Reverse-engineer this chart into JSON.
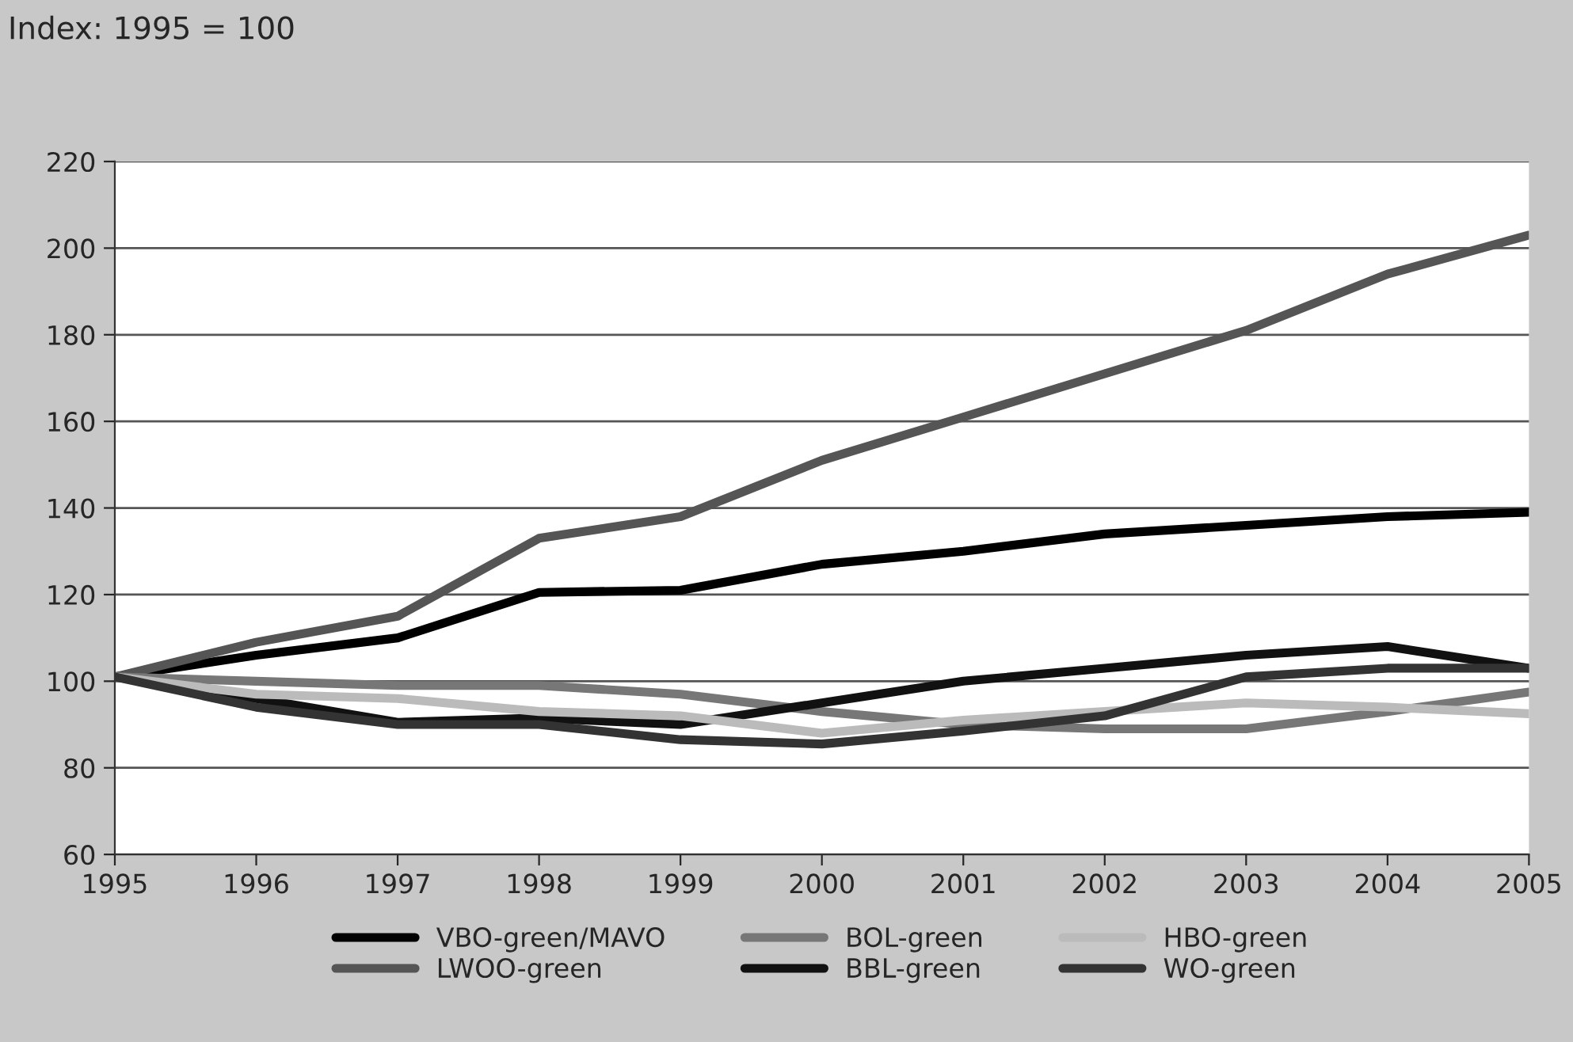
{
  "chart_data": {
    "type": "line",
    "title": "Index: 1995 = 100",
    "x": [
      1995,
      1996,
      1997,
      1998,
      1999,
      2000,
      2001,
      2002,
      2003,
      2004,
      2005
    ],
    "series": [
      {
        "name": "VBO-green/MAVO",
        "color": "#000000",
        "values": [
          101,
          106,
          110,
          120.5,
          121,
          127,
          130,
          134,
          136,
          138,
          139
        ]
      },
      {
        "name": "LWOO-green",
        "color": "#555555",
        "values": [
          101,
          109,
          115,
          133,
          138,
          151,
          161,
          171,
          181,
          194,
          203
        ]
      },
      {
        "name": "BOL-green",
        "color": "#777777",
        "values": [
          101,
          100,
          99,
          99,
          97,
          93,
          90,
          89,
          89,
          93,
          97.5
        ]
      },
      {
        "name": "BBL-green",
        "color": "#111111",
        "values": [
          101,
          96,
          90.5,
          91.5,
          90,
          95,
          100,
          103,
          106,
          108,
          103
        ]
      },
      {
        "name": "HBO-green",
        "color": "#bbbbbb",
        "values": [
          101,
          97,
          96,
          93,
          92,
          88,
          91,
          93,
          95,
          94,
          92.5
        ]
      },
      {
        "name": "WO-green",
        "color": "#333333",
        "values": [
          101,
          94,
          90,
          90,
          86.5,
          85.5,
          88.5,
          92,
          101,
          103,
          103
        ]
      }
    ],
    "xlim": [
      1995,
      2005
    ],
    "xticks": [
      1995,
      1996,
      1997,
      1998,
      1999,
      2000,
      2001,
      2002,
      2003,
      2004,
      2005
    ],
    "ylim": [
      60,
      220
    ],
    "yticks": [
      60,
      80,
      100,
      120,
      140,
      160,
      180,
      200,
      220
    ],
    "grid": "y",
    "legend": "bottom",
    "marker": "none",
    "line_style": "solid"
  }
}
